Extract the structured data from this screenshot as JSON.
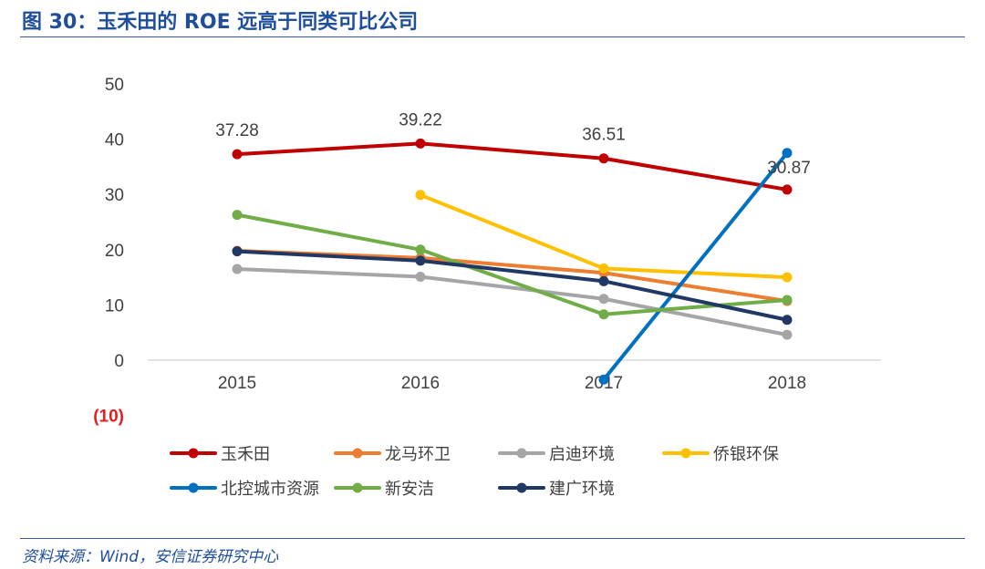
{
  "header": {
    "title": "图 30：玉禾田的 ROE 远高于同类可比公司"
  },
  "footer": {
    "source": "资料来源：Wind，安信证券研究中心"
  },
  "chart_data": {
    "type": "line",
    "categories": [
      "2015",
      "2016",
      "2017",
      "2018"
    ],
    "ylim": [
      -10,
      50
    ],
    "yticks": [
      {
        "value": 50,
        "label": "50"
      },
      {
        "value": 40,
        "label": "40"
      },
      {
        "value": 30,
        "label": "30"
      },
      {
        "value": 20,
        "label": "20"
      },
      {
        "value": 10,
        "label": "10"
      },
      {
        "value": 0,
        "label": "0"
      },
      {
        "value": -10,
        "label": "(10)",
        "color": "#e02020"
      }
    ],
    "grid": false,
    "legend_position": "bottom",
    "series": [
      {
        "name": "玉禾田",
        "color": "#c00000",
        "values": [
          37.28,
          39.22,
          36.51,
          30.87
        ],
        "labels": [
          "37.28",
          "39.22",
          "36.51",
          "30.87"
        ]
      },
      {
        "name": "龙马环卫",
        "color": "#ed7d31",
        "values": [
          19.8,
          18.5,
          15.8,
          10.7
        ]
      },
      {
        "name": "启迪环境",
        "color": "#a5a5a5",
        "values": [
          16.5,
          15.1,
          11.1,
          4.6
        ]
      },
      {
        "name": "侨银环保",
        "color": "#ffc000",
        "values": [
          null,
          29.9,
          16.6,
          15.0
        ]
      },
      {
        "name": "北控城市资源",
        "color": "#0070c0",
        "values": [
          null,
          null,
          -3.5,
          37.5
        ]
      },
      {
        "name": "新安洁",
        "color": "#70ad47",
        "values": [
          26.3,
          20.0,
          8.3,
          10.9
        ]
      },
      {
        "name": "建广环境",
        "color": "#1f3864",
        "values": [
          19.7,
          18.0,
          14.3,
          7.3
        ]
      }
    ]
  }
}
